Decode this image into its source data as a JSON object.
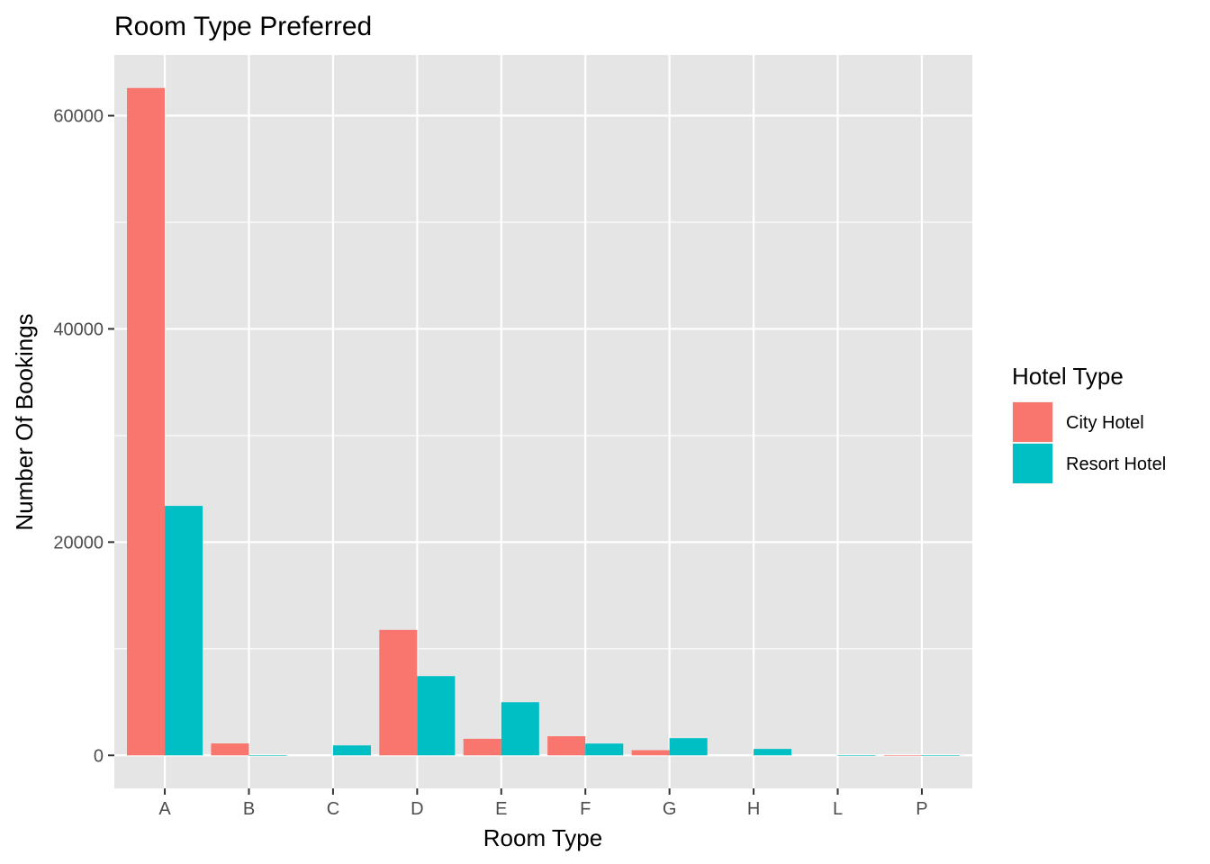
{
  "chart_data": {
    "type": "bar",
    "title": "Room Type Preferred",
    "xlabel": "Room Type",
    "ylabel": "Number Of Bookings",
    "categories": [
      "A",
      "B",
      "C",
      "D",
      "E",
      "F",
      "G",
      "H",
      "L",
      "P"
    ],
    "series": [
      {
        "name": "City Hotel",
        "color": "#F8766D",
        "values": [
          62595,
          1118,
          null,
          11768,
          1553,
          1791,
          484,
          null,
          null,
          12
        ]
      },
      {
        "name": "Resort Hotel",
        "color": "#00BFC4",
        "values": [
          23399,
          3,
          932,
          7433,
          4982,
          1106,
          1610,
          601,
          6,
          2
        ]
      }
    ],
    "ylim": [
      -3100,
      65700
    ],
    "yticks": [
      0,
      20000,
      40000,
      60000
    ],
    "ytick_labels": [
      "0",
      "20000",
      "40000",
      "60000"
    ],
    "grid": true,
    "legend": {
      "title": "Hotel Type",
      "position": "right"
    },
    "panel_background": "#E5E5E5",
    "grid_color": "#FFFFFF"
  }
}
